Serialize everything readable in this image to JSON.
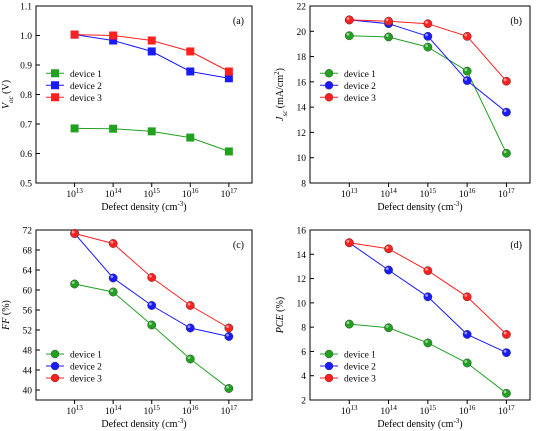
{
  "chart_data": [
    {
      "type": "line",
      "panel": "(a)",
      "ylabel_parts": {
        "main": "V",
        "sub": "oc",
        "unit": " (V)"
      },
      "xlabel_parts": {
        "main": "Defect density (cm",
        "sup": "-3",
        "end": ")"
      },
      "x_scale": "log",
      "x": [
        10000000000000.0,
        100000000000000.0,
        1000000000000000.0,
        1e+16,
        1e+17
      ],
      "x_tick_labels": [
        {
          "base": "10",
          "exp": "13"
        },
        {
          "base": "10",
          "exp": "14"
        },
        {
          "base": "10",
          "exp": "15"
        },
        {
          "base": "10",
          "exp": "16"
        },
        {
          "base": "10",
          "exp": "17"
        }
      ],
      "ylim": [
        0.5,
        1.1
      ],
      "yticks": [
        0.5,
        0.6,
        0.7,
        0.8,
        0.9,
        1.0,
        1.1
      ],
      "y_tick_labels": [
        "0.5",
        "0.6",
        "0.7",
        "0.8",
        "0.9",
        "1.0",
        "1.1"
      ],
      "marker": "square",
      "legend_placement": "center-left",
      "series": [
        {
          "name": "device 1",
          "color": "#22a022",
          "values": [
            0.685,
            0.684,
            0.675,
            0.654,
            0.607
          ]
        },
        {
          "name": "device 2",
          "color": "#1a1aff",
          "values": [
            1.003,
            0.983,
            0.946,
            0.878,
            0.855
          ]
        },
        {
          "name": "device 3",
          "color": "#ff2020",
          "values": [
            1.003,
            1.0,
            0.983,
            0.946,
            0.878
          ]
        }
      ]
    },
    {
      "type": "line",
      "panel": "(b)",
      "ylabel_parts": {
        "main": "J",
        "sub": "sc",
        "unit": " (mA/cm",
        "unit_sup": "2",
        "unit_end": ")"
      },
      "xlabel_parts": {
        "main": "Defect density (cm",
        "sup": "-3",
        "end": ")"
      },
      "x_scale": "log",
      "x": [
        10000000000000.0,
        100000000000000.0,
        1000000000000000.0,
        1e+16,
        1e+17
      ],
      "x_tick_labels": [
        {
          "base": "10",
          "exp": "13"
        },
        {
          "base": "10",
          "exp": "14"
        },
        {
          "base": "10",
          "exp": "15"
        },
        {
          "base": "10",
          "exp": "16"
        },
        {
          "base": "10",
          "exp": "17"
        }
      ],
      "ylim": [
        8,
        22
      ],
      "yticks": [
        8,
        10,
        12,
        14,
        16,
        18,
        20,
        22
      ],
      "y_tick_labels": [
        "8",
        "10",
        "12",
        "14",
        "16",
        "18",
        "20",
        "22"
      ],
      "marker": "circle",
      "legend_placement": "center-left",
      "series": [
        {
          "name": "device 1",
          "color": "#22a022",
          "values": [
            19.65,
            19.55,
            18.75,
            16.85,
            10.35
          ]
        },
        {
          "name": "device 2",
          "color": "#1a1aff",
          "values": [
            20.9,
            20.6,
            19.6,
            16.1,
            13.6
          ]
        },
        {
          "name": "device 3",
          "color": "#ff2020",
          "values": [
            20.9,
            20.8,
            20.6,
            19.6,
            16.05
          ]
        }
      ]
    },
    {
      "type": "line",
      "panel": "(c)",
      "ylabel_parts": {
        "main": "FF",
        "unit": " (%)"
      },
      "xlabel_parts": {
        "main": "Defect density (cm",
        "sup": "-3",
        "end": ")"
      },
      "x_scale": "log",
      "x": [
        10000000000000.0,
        100000000000000.0,
        1000000000000000.0,
        1e+16,
        1e+17
      ],
      "x_tick_labels": [
        {
          "base": "10",
          "exp": "13"
        },
        {
          "base": "10",
          "exp": "14"
        },
        {
          "base": "10",
          "exp": "15"
        },
        {
          "base": "10",
          "exp": "16"
        },
        {
          "base": "10",
          "exp": "17"
        }
      ],
      "ylim": [
        38,
        72
      ],
      "yticks": [
        40,
        44,
        48,
        52,
        56,
        60,
        64,
        68,
        72
      ],
      "y_tick_labels": [
        "40",
        "44",
        "48",
        "52",
        "56",
        "60",
        "64",
        "68",
        "72"
      ],
      "marker": "circle",
      "legend_placement": "bottom-left",
      "series": [
        {
          "name": "device 1",
          "color": "#22a022",
          "values": [
            61.2,
            59.6,
            53.0,
            46.2,
            40.3
          ]
        },
        {
          "name": "device 2",
          "color": "#1a1aff",
          "values": [
            71.3,
            62.4,
            56.9,
            52.4,
            50.7
          ]
        },
        {
          "name": "device 3",
          "color": "#ff2020",
          "values": [
            71.3,
            69.3,
            62.5,
            56.9,
            52.4
          ]
        }
      ]
    },
    {
      "type": "line",
      "panel": "(d)",
      "ylabel_parts": {
        "main": "PCE",
        "unit": " (%)"
      },
      "xlabel_parts": {
        "main": "Defect density (cm",
        "sup": "-3",
        "end": ")"
      },
      "x_scale": "log",
      "x": [
        10000000000000.0,
        100000000000000.0,
        1000000000000000.0,
        1e+16,
        1e+17
      ],
      "x_tick_labels": [
        {
          "base": "10",
          "exp": "13"
        },
        {
          "base": "10",
          "exp": "14"
        },
        {
          "base": "10",
          "exp": "15"
        },
        {
          "base": "10",
          "exp": "16"
        },
        {
          "base": "10",
          "exp": "17"
        }
      ],
      "ylim": [
        2,
        16
      ],
      "yticks": [
        2,
        4,
        6,
        8,
        10,
        12,
        14,
        16
      ],
      "y_tick_labels": [
        "2",
        "4",
        "6",
        "8",
        "10",
        "12",
        "14",
        "16"
      ],
      "marker": "circle",
      "legend_placement": "bottom-left",
      "series": [
        {
          "name": "device 1",
          "color": "#22a022",
          "values": [
            8.25,
            7.95,
            6.7,
            5.05,
            2.55
          ]
        },
        {
          "name": "device 2",
          "color": "#1a1aff",
          "values": [
            14.95,
            12.7,
            10.5,
            7.4,
            5.9
          ]
        },
        {
          "name": "device 3",
          "color": "#ff2020",
          "values": [
            14.95,
            14.45,
            12.65,
            10.5,
            7.4
          ]
        }
      ]
    }
  ]
}
